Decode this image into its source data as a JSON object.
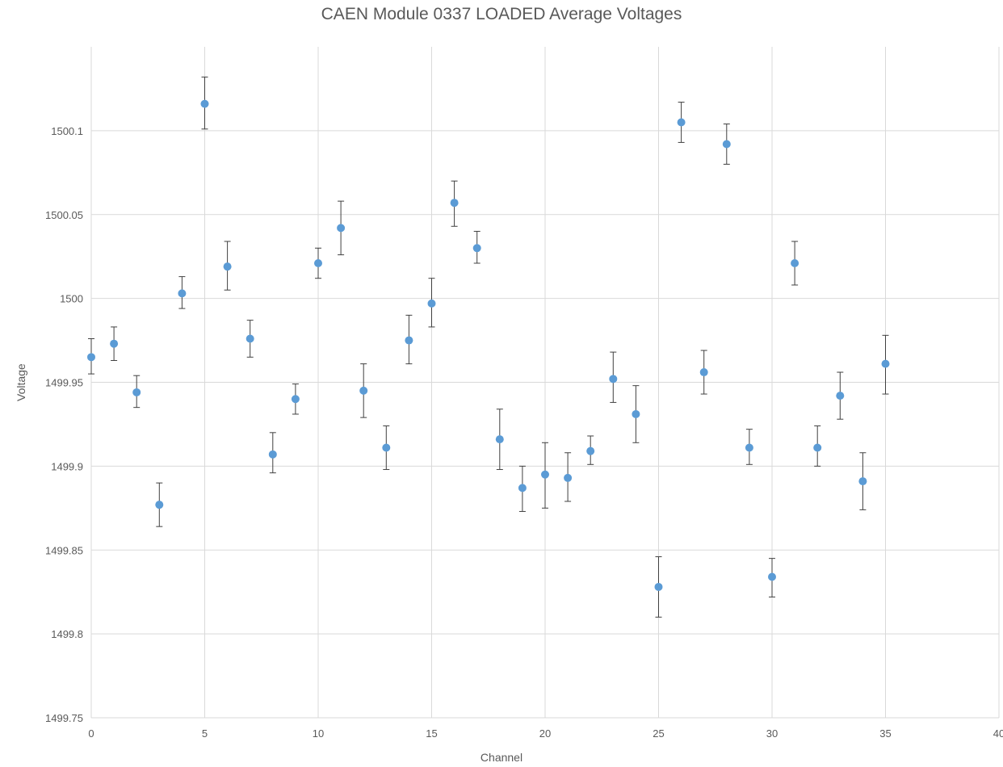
{
  "chart_data": {
    "type": "scatter",
    "title": "CAEN Module 0337 LOADED Average Voltages",
    "xlabel": "Channel",
    "ylabel": "Voltage",
    "xlim": [
      0,
      40
    ],
    "ylim": [
      1499.75,
      1500.15
    ],
    "xticks": [
      "0",
      "5",
      "10",
      "15",
      "20",
      "25",
      "30",
      "35",
      "40"
    ],
    "yticks": [
      "1499.75",
      "1499.8",
      "1499.85",
      "1499.9",
      "1499.95",
      "1500",
      "1500.05",
      "1500.1"
    ],
    "grid": true,
    "marker_color": "#5b9bd5",
    "error_bar_color": "#404040",
    "grid_color": "#d9d9d9",
    "series": [
      {
        "x": [
          0,
          1,
          2,
          3,
          4,
          5,
          6,
          7,
          8,
          9,
          10,
          11,
          12,
          13,
          14,
          15,
          16,
          17,
          18,
          19,
          20,
          21,
          22,
          23,
          24,
          25,
          26,
          27,
          28,
          29,
          30,
          31,
          32,
          33,
          34,
          35
        ],
        "y": [
          1499.965,
          1499.973,
          1499.944,
          1499.877,
          1500.003,
          1500.116,
          1500.019,
          1499.976,
          1499.907,
          1499.94,
          1500.021,
          1500.042,
          1499.945,
          1499.911,
          1499.975,
          1499.997,
          1500.057,
          1500.03,
          1499.916,
          1499.887,
          1499.895,
          1499.893,
          1499.909,
          1499.952,
          1499.931,
          1499.828,
          1500.105,
          1499.956,
          1500.092,
          1499.911,
          1499.834,
          1500.021,
          1499.911,
          1499.942,
          1499.891,
          1499.961
        ],
        "y_low": [
          1499.955,
          1499.963,
          1499.935,
          1499.864,
          1499.994,
          1500.101,
          1500.005,
          1499.965,
          1499.896,
          1499.931,
          1500.012,
          1500.026,
          1499.929,
          1499.898,
          1499.961,
          1499.983,
          1500.043,
          1500.021,
          1499.898,
          1499.873,
          1499.875,
          1499.879,
          1499.901,
          1499.938,
          1499.914,
          1499.81,
          1500.093,
          1499.943,
          1500.08,
          1499.901,
          1499.822,
          1500.008,
          1499.9,
          1499.928,
          1499.874,
          1499.943
        ],
        "y_high": [
          1499.976,
          1499.983,
          1499.954,
          1499.89,
          1500.013,
          1500.132,
          1500.034,
          1499.987,
          1499.92,
          1499.949,
          1500.03,
          1500.058,
          1499.961,
          1499.924,
          1499.99,
          1500.012,
          1500.07,
          1500.04,
          1499.934,
          1499.9,
          1499.914,
          1499.908,
          1499.918,
          1499.968,
          1499.948,
          1499.846,
          1500.117,
          1499.969,
          1500.104,
          1499.922,
          1499.845,
          1500.034,
          1499.924,
          1499.956,
          1499.908,
          1499.978
        ]
      }
    ]
  }
}
